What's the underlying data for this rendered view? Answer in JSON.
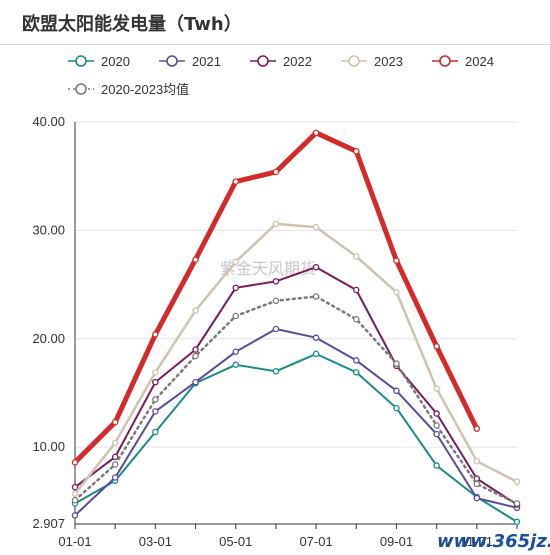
{
  "chart_data": {
    "type": "line",
    "title": "欧盟太阳能发电量（Twh）",
    "x": [
      "01-01",
      "02-01",
      "03-01",
      "04-01",
      "05-01",
      "06-01",
      "07-01",
      "08-01",
      "09-01",
      "10-01",
      "11-01",
      "12-01"
    ],
    "x_ticks": [
      "01-01",
      "03-01",
      "05-01",
      "07-01",
      "09-01",
      "11-01"
    ],
    "y_ticks": [
      "40.00",
      "30.00",
      "20.00",
      "10.00",
      "2.907"
    ],
    "ylim": [
      2.907,
      40.0
    ],
    "grid": true,
    "legend_position": "top",
    "series": [
      {
        "name": "2020",
        "color": "#1a8a8a",
        "width": 2,
        "dash": false,
        "values": [
          4.8,
          6.9,
          11.4,
          15.9,
          17.6,
          17.0,
          18.6,
          16.9,
          13.6,
          8.3,
          5.4,
          3.1
        ]
      },
      {
        "name": "2021",
        "color": "#5a4a9e",
        "width": 2,
        "dash": false,
        "values": [
          3.7,
          7.2,
          13.3,
          16.0,
          18.8,
          20.9,
          20.1,
          18.0,
          15.2,
          11.2,
          5.3,
          4.4
        ]
      },
      {
        "name": "2022",
        "color": "#7a1a5a",
        "width": 2,
        "dash": false,
        "values": [
          6.3,
          9.1,
          16.0,
          19.0,
          24.7,
          25.3,
          26.6,
          24.5,
          17.5,
          13.1,
          7.1,
          4.7
        ]
      },
      {
        "name": "2023",
        "color": "#cfc3b0",
        "width": 2.5,
        "dash": false,
        "values": [
          5.7,
          10.4,
          16.9,
          22.6,
          27.1,
          30.6,
          30.3,
          27.6,
          24.3,
          15.4,
          8.7,
          6.8
        ]
      },
      {
        "name": "2024",
        "color": "#d42a2a",
        "width": 5,
        "dash": false,
        "values": [
          8.6,
          12.3,
          20.4,
          27.3,
          34.5,
          35.4,
          39.0,
          37.3,
          27.2,
          19.3,
          11.7,
          null
        ]
      },
      {
        "name": "2020-2023均值",
        "color": "#7a7a7a",
        "width": 2.5,
        "dash": true,
        "values": [
          5.1,
          8.4,
          14.4,
          18.4,
          22.1,
          23.5,
          23.9,
          21.8,
          17.7,
          12.0,
          6.6,
          4.8
        ]
      }
    ]
  },
  "watermark": "紫金天风期货",
  "site_mark": "www.365jz.com"
}
